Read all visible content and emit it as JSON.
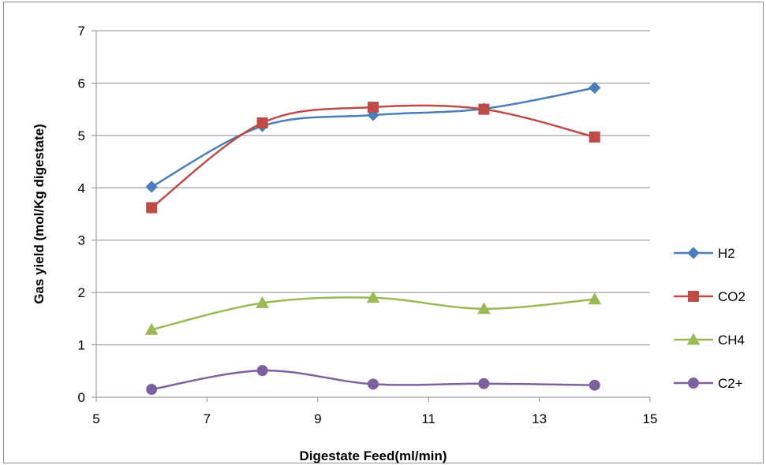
{
  "chart_data": {
    "type": "line",
    "title": "",
    "xlabel": "Digestate Feed(ml/min)",
    "ylabel": "Gas yield (mol/Kg digestate)",
    "xlim": [
      5,
      15
    ],
    "ylim": [
      0,
      7
    ],
    "x_ticks": [
      "5",
      "7",
      "9",
      "11",
      "13",
      "15"
    ],
    "y_ticks": [
      "0",
      "1",
      "2",
      "3",
      "4",
      "5",
      "6",
      "7"
    ],
    "grid": "horizontal",
    "legend_position": "right",
    "smooth_lines": true,
    "x": [
      6,
      8,
      10,
      12,
      14
    ],
    "series": [
      {
        "name": "H2",
        "values": [
          4.02,
          5.18,
          5.39,
          5.51,
          5.91
        ],
        "color": "#4a7ebb",
        "marker": "diamond"
      },
      {
        "name": "CO2",
        "values": [
          3.62,
          5.24,
          5.54,
          5.5,
          4.97
        ],
        "color": "#be4b48",
        "marker": "square"
      },
      {
        "name": "CH4",
        "values": [
          1.29,
          1.8,
          1.9,
          1.69,
          1.87
        ],
        "color": "#98b954",
        "marker": "triangle"
      },
      {
        "name": "C2+",
        "values": [
          0.15,
          0.51,
          0.25,
          0.26,
          0.23
        ],
        "color": "#7d60a0",
        "marker": "circle"
      }
    ]
  }
}
